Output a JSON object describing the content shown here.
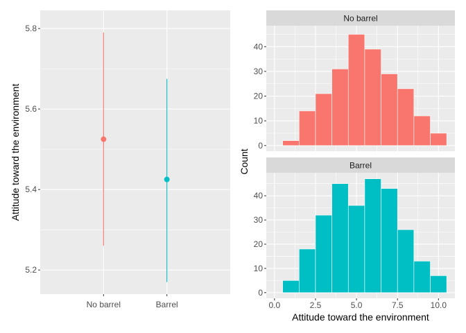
{
  "chart_data": [
    {
      "type": "scatter",
      "title": "",
      "xlabel": "",
      "ylabel": "Attitude toward the environment",
      "categories": [
        "No barrel",
        "Barrel"
      ],
      "points": [
        {
          "category": "No barrel",
          "mean": 5.525,
          "lower": 5.26,
          "upper": 5.79,
          "color": "#F8766D"
        },
        {
          "category": "Barrel",
          "mean": 5.425,
          "lower": 5.17,
          "upper": 5.675,
          "color": "#00BFC4"
        }
      ],
      "ylim": [
        5.14,
        5.845
      ],
      "yticks": [
        5.2,
        5.4,
        5.6,
        5.8
      ],
      "ytick_labels": [
        "5.2",
        "5.4",
        "5.6",
        "5.8"
      ],
      "grid": true
    },
    {
      "type": "bar",
      "title": "",
      "xlabel": "Attitude toward the environment",
      "ylabel": "Count",
      "xlim": [
        -0.5,
        11
      ],
      "xticks": [
        0,
        2.5,
        5,
        7.5,
        10
      ],
      "xtick_labels": [
        "0.0",
        "2.5",
        "5.0",
        "7.5",
        "10.0"
      ],
      "bin_edges": [
        0.5,
        1.5,
        2.5,
        3.5,
        4.5,
        5.5,
        6.5,
        7.5,
        8.5,
        9.5,
        10.5
      ],
      "grid": true,
      "facets": [
        {
          "label": "No barrel",
          "color": "#F8766D",
          "counts": [
            2,
            14,
            21,
            31,
            45,
            39,
            29,
            23,
            12,
            5
          ],
          "ylim": [
            -2.3,
            48.5
          ],
          "yticks": [
            0,
            10,
            20,
            30,
            40
          ],
          "ytick_labels": [
            "0",
            "10",
            "20",
            "30",
            "40"
          ]
        },
        {
          "label": "Barrel",
          "color": "#00BFC4",
          "counts": [
            5,
            18,
            32,
            45,
            36,
            47,
            43,
            26,
            13,
            7
          ],
          "ylim": [
            -2.35,
            49.5
          ],
          "yticks": [
            0,
            10,
            20,
            30,
            40
          ],
          "ytick_labels": [
            "0",
            "10",
            "20",
            "30",
            "40"
          ]
        }
      ]
    }
  ]
}
